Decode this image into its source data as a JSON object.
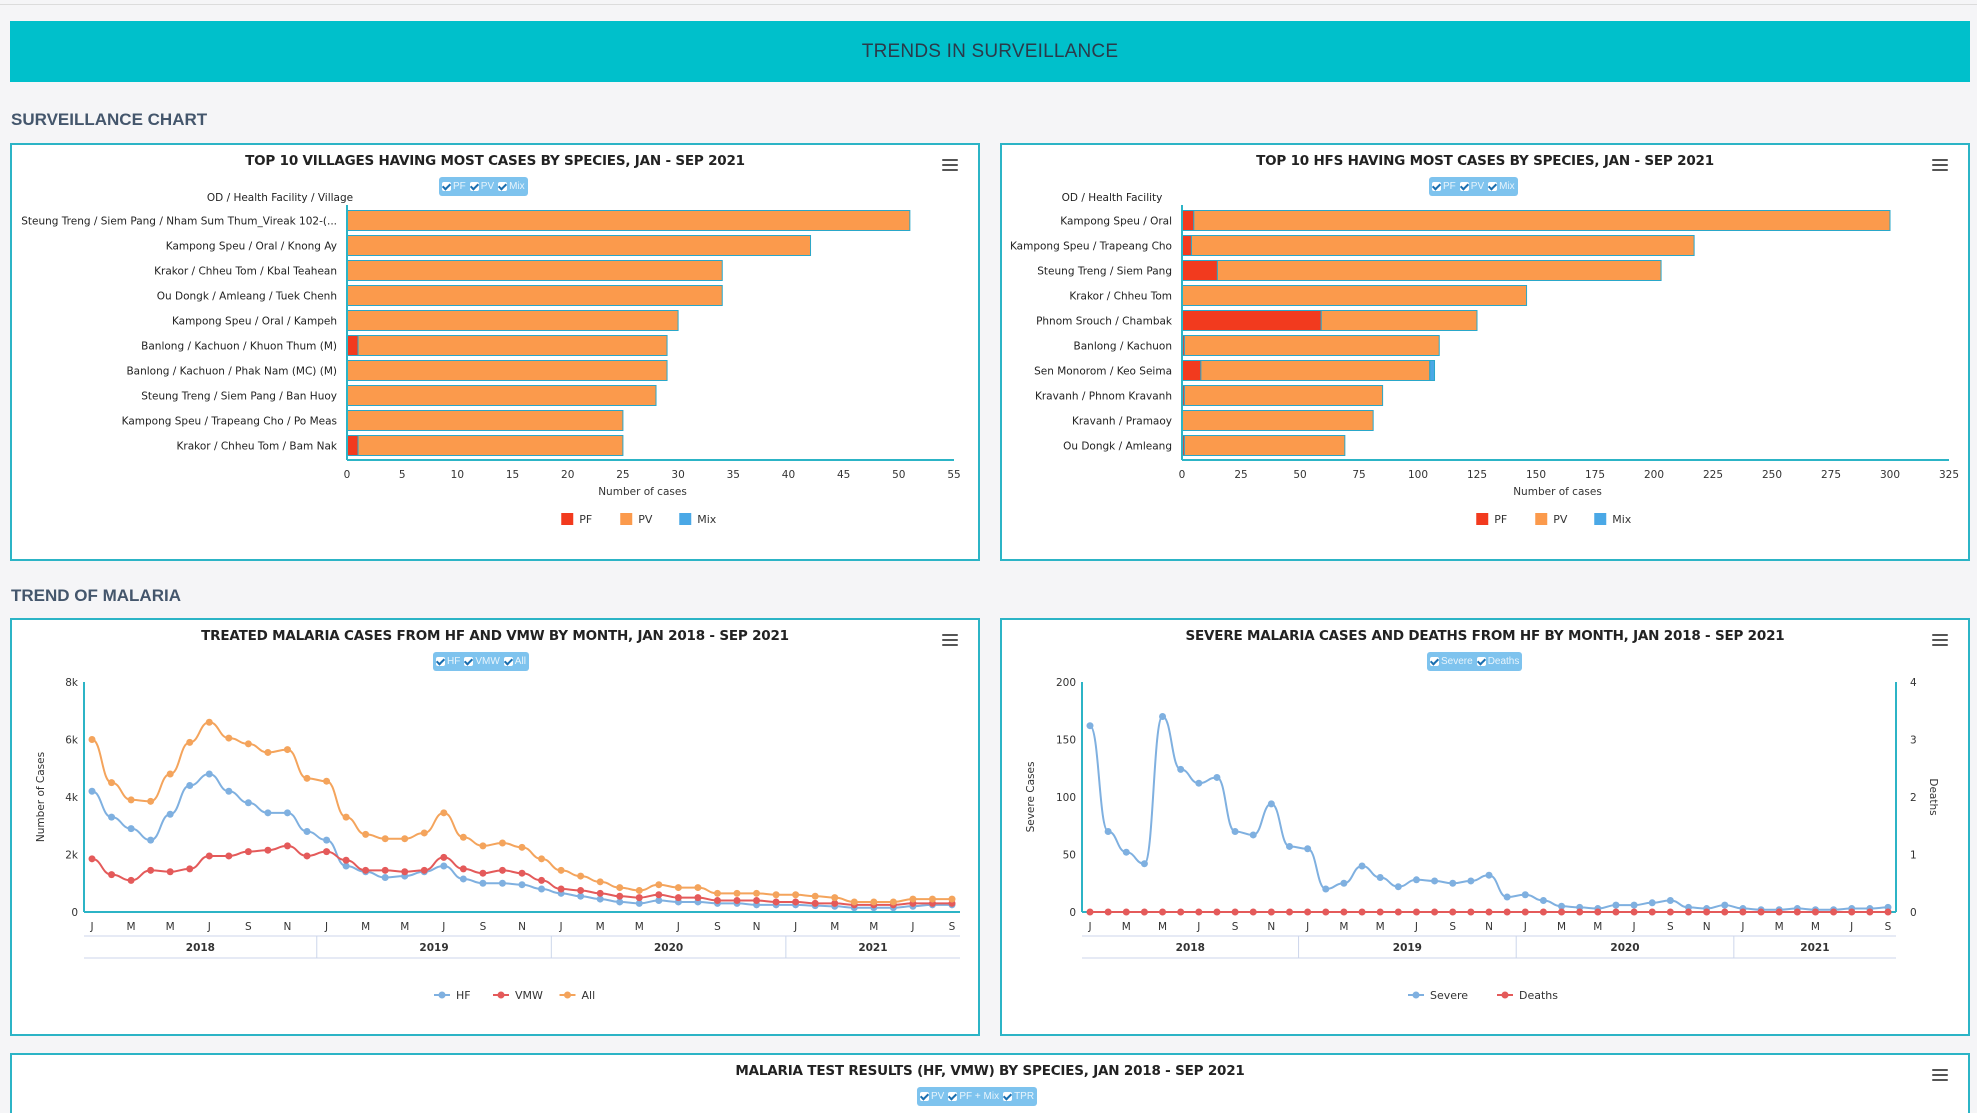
{
  "banner": {
    "title": "TRENDS IN SURVEILLANCE"
  },
  "sections": {
    "surveillance": "SURVEILLANCE CHART",
    "trend": "TREND OF MALARIA"
  },
  "colors": {
    "accent": "#00c0cb",
    "border": "#2cb4c6",
    "pf": "#f23a1e",
    "pv": "#fb9a4c",
    "mix": "#4aa8e6",
    "hf": "#7fb0e0",
    "vmw": "#e45a5a",
    "all": "#f4a45c",
    "severe": "#7fb0e0",
    "deaths": "#e45a5a"
  },
  "icons": {
    "menu": "hamburger-menu-icon",
    "check": "checkmark-icon"
  },
  "chart_data": [
    {
      "id": "villages",
      "type": "bar",
      "orientation": "horizontal",
      "stacked": true,
      "title": "TOP 10 VILLAGES HAVING MOST CASES BY SPECIES, JAN - SEP 2021",
      "toggles": [
        "PF",
        "PV",
        "Mix"
      ],
      "category_axis_title": "OD / Health Facility / Village",
      "categories": [
        "Steung Treng / Siem Pang / Nham Sum Thum_Vireak 102-(...",
        "Kampong Speu / Oral / Knong Ay",
        "Krakor / Chheu Tom / Kbal Teahean",
        "Ou Dongk / Amleang / Tuek Chenh",
        "Kampong Speu / Oral / Kampeh",
        "Banlong / Kachuon / Khuon Thum (M)",
        "Banlong / Kachuon / Phak Nam (MC) (M)",
        "Steung Treng / Siem Pang / Ban Huoy",
        "Kampong Speu / Trapeang Cho / Po Meas",
        "Krakor / Chheu Tom / Bam Nak"
      ],
      "series": [
        {
          "name": "PF",
          "values": [
            0,
            0,
            0,
            0,
            0,
            1,
            0,
            0,
            0,
            1
          ]
        },
        {
          "name": "PV",
          "values": [
            51,
            42,
            34,
            34,
            30,
            28,
            29,
            28,
            25,
            24
          ]
        },
        {
          "name": "Mix",
          "values": [
            0,
            0,
            0,
            0,
            0,
            0,
            0,
            0,
            0,
            0
          ]
        }
      ],
      "xlabel": "Number of cases",
      "xlim": [
        0,
        55
      ],
      "xticks": [
        0,
        5,
        10,
        15,
        20,
        25,
        30,
        35,
        40,
        45,
        50,
        55
      ],
      "legend": "bottom"
    },
    {
      "id": "hfs",
      "type": "bar",
      "orientation": "horizontal",
      "stacked": true,
      "title": "TOP 10 HFS HAVING MOST CASES BY SPECIES, JAN - SEP 2021",
      "toggles": [
        "PF",
        "PV",
        "Mix"
      ],
      "category_axis_title": "OD / Health Facility",
      "categories": [
        "Kampong Speu / Oral",
        "Kampong Speu / Trapeang Cho",
        "Steung Treng / Siem Pang",
        "Krakor / Chheu Tom",
        "Phnom Srouch / Chambak",
        "Banlong / Kachuon",
        "Sen Monorom / Keo Seima",
        "Kravanh / Phnom Kravanh",
        "Kravanh / Pramaoy",
        "Ou Dongk / Amleang"
      ],
      "series": [
        {
          "name": "PF",
          "values": [
            5,
            4,
            15,
            0,
            59,
            1,
            8,
            1,
            0,
            1
          ]
        },
        {
          "name": "PV",
          "values": [
            295,
            213,
            188,
            146,
            66,
            108,
            97,
            84,
            81,
            68
          ]
        },
        {
          "name": "Mix",
          "values": [
            0,
            0,
            0,
            0,
            0,
            0,
            2,
            0,
            0,
            0
          ]
        }
      ],
      "xlabel": "Number of cases",
      "xlim": [
        0,
        325
      ],
      "xticks": [
        0,
        25,
        50,
        75,
        100,
        125,
        150,
        175,
        200,
        225,
        250,
        275,
        300,
        325
      ],
      "legend": "bottom"
    },
    {
      "id": "treated",
      "type": "line",
      "title": "TREATED MALARIA CASES FROM HF AND VMW BY MONTH, JAN 2018 - SEP 2021",
      "toggles": [
        "HF",
        "VMW",
        "All"
      ],
      "ylabel": "Number of Cases",
      "ylim": [
        0,
        8000
      ],
      "yticks": [
        0,
        2000,
        4000,
        6000,
        8000
      ],
      "ytick_labels": [
        "0",
        "2k",
        "4k",
        "6k",
        "8k"
      ],
      "month_labels": [
        "J",
        "M",
        "M",
        "J",
        "S",
        "N",
        "J",
        "M",
        "M",
        "J",
        "S",
        "N",
        "J",
        "M",
        "M",
        "J",
        "S",
        "N",
        "J",
        "M",
        "M",
        "J",
        "S"
      ],
      "years": [
        "2018",
        "2019",
        "2020",
        "2021"
      ],
      "series": [
        {
          "name": "HF",
          "values": [
            4200,
            3300,
            2900,
            2500,
            3400,
            4400,
            4800,
            4200,
            3800,
            3450,
            3450,
            2800,
            2500,
            1600,
            1400,
            1200,
            1250,
            1400,
            1600,
            1150,
            1000,
            1000,
            950,
            800,
            650,
            550,
            450,
            350,
            300,
            400,
            350,
            350,
            300,
            300,
            250,
            250,
            250,
            220,
            200,
            150,
            150,
            150,
            200,
            250,
            250
          ]
        },
        {
          "name": "VMW",
          "values": [
            1850,
            1300,
            1100,
            1450,
            1400,
            1500,
            1950,
            1950,
            2100,
            2150,
            2300,
            1950,
            2100,
            1800,
            1450,
            1450,
            1400,
            1450,
            1900,
            1500,
            1350,
            1450,
            1350,
            1100,
            800,
            750,
            650,
            550,
            500,
            600,
            500,
            500,
            400,
            400,
            400,
            350,
            350,
            300,
            300,
            250,
            250,
            250,
            300,
            300,
            300
          ]
        },
        {
          "name": "All",
          "values": [
            6000,
            4500,
            3900,
            3850,
            4800,
            5900,
            6600,
            6050,
            5850,
            5550,
            5650,
            4650,
            4550,
            3300,
            2700,
            2550,
            2550,
            2750,
            3450,
            2600,
            2300,
            2400,
            2250,
            1850,
            1450,
            1250,
            1050,
            850,
            750,
            950,
            850,
            850,
            650,
            650,
            650,
            600,
            600,
            550,
            500,
            350,
            350,
            350,
            450,
            450,
            450
          ]
        }
      ],
      "legend": "bottom"
    },
    {
      "id": "severe",
      "type": "line",
      "title": "SEVERE MALARIA CASES AND DEATHS FROM HF BY MONTH, JAN 2018 - SEP 2021",
      "toggles": [
        "Severe",
        "Deaths"
      ],
      "ylabel": "Severe Cases",
      "ylabel_right": "Deaths",
      "ylim": [
        0,
        200
      ],
      "yticks": [
        0,
        50,
        100,
        150,
        200
      ],
      "ylim_right": [
        0,
        4
      ],
      "yticks_right": [
        0,
        1,
        2,
        3,
        4
      ],
      "month_labels": [
        "J",
        "M",
        "M",
        "J",
        "S",
        "N",
        "J",
        "M",
        "M",
        "J",
        "S",
        "N",
        "J",
        "M",
        "M",
        "J",
        "S",
        "N",
        "J",
        "M",
        "M",
        "J",
        "S"
      ],
      "years": [
        "2018",
        "2019",
        "2020",
        "2021"
      ],
      "series": [
        {
          "name": "Severe",
          "axis": "left",
          "values": [
            162,
            70,
            52,
            42,
            170,
            124,
            112,
            117,
            70,
            67,
            94,
            57,
            55,
            20,
            25,
            40,
            30,
            22,
            28,
            27,
            25,
            27,
            32,
            13,
            15,
            10,
            5,
            4,
            3,
            6,
            6,
            8,
            10,
            4,
            3,
            6,
            3,
            2,
            2,
            3,
            2,
            2,
            3,
            3,
            4
          ]
        },
        {
          "name": "Deaths",
          "axis": "right",
          "values": [
            0,
            0,
            0,
            0,
            0,
            0,
            0,
            0,
            0,
            0,
            0,
            0,
            0,
            0,
            0,
            0,
            0,
            0,
            0,
            0,
            0,
            0,
            0,
            0,
            0,
            0,
            0,
            0,
            0,
            0,
            0,
            0,
            0,
            0,
            0,
            0,
            0,
            0,
            0,
            0,
            0,
            0,
            0,
            0,
            0
          ]
        }
      ],
      "legend": "bottom"
    },
    {
      "id": "testresults",
      "type": "line",
      "title": "MALARIA TEST RESULTS (HF, VMW) BY SPECIES, JAN 2018 - SEP 2021",
      "toggles": [
        "PV",
        "PF + Mix",
        "TPR"
      ]
    }
  ]
}
